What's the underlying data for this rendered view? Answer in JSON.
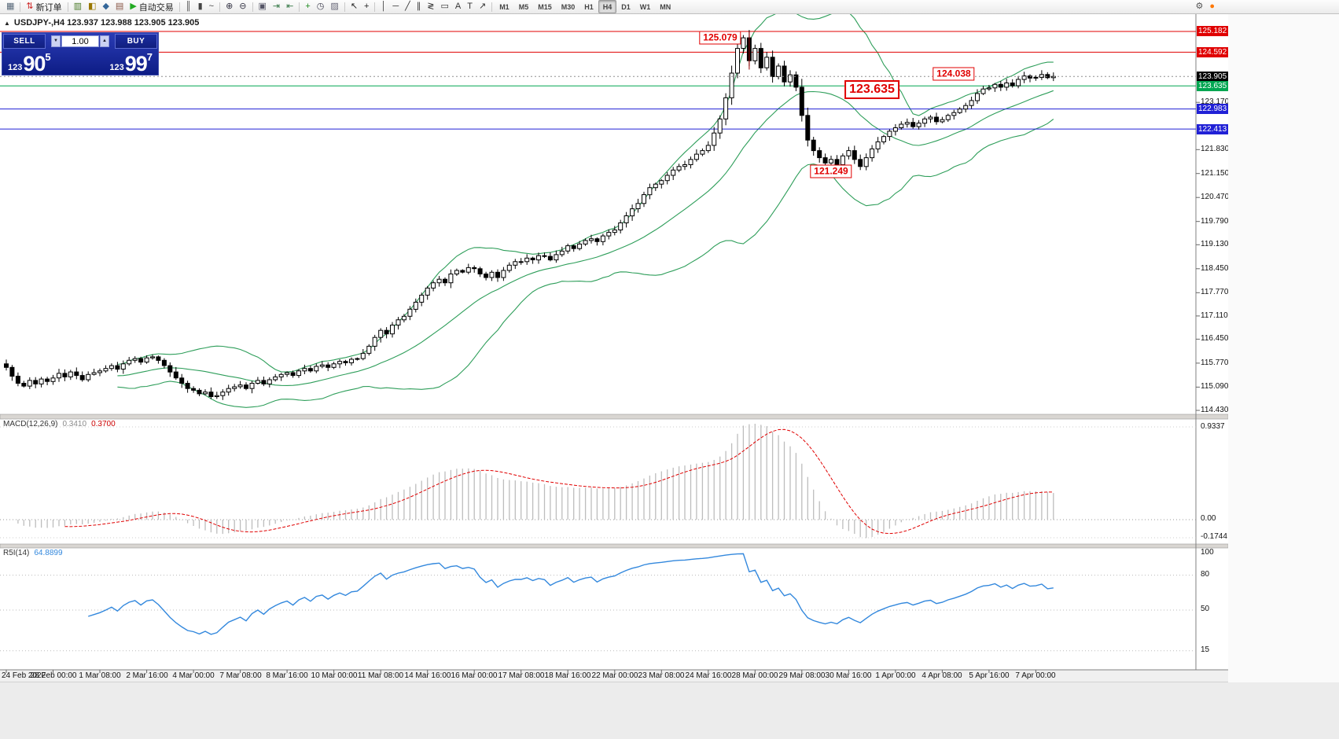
{
  "toolbar": {
    "groups": [
      {
        "items": [
          {
            "name": "new-chart-button",
            "glyph": "▦",
            "color": "#556677"
          }
        ]
      },
      {
        "items": [
          {
            "name": "new-order-button",
            "glyph": "⇅",
            "color": "#cc2222",
            "label": "新订单"
          }
        ]
      },
      {
        "items": [
          {
            "name": "market-watch-button",
            "glyph": "▥",
            "color": "#447722"
          },
          {
            "name": "data-window-button",
            "glyph": "◧",
            "color": "#997700"
          },
          {
            "name": "navigator-button",
            "glyph": "◆",
            "color": "#336699"
          },
          {
            "name": "terminal-button",
            "glyph": "▤",
            "color": "#885544"
          },
          {
            "name": "autotrading-button",
            "glyph": "▶",
            "color": "#22aa22",
            "label": "自动交易"
          }
        ]
      },
      {
        "items": [
          {
            "name": "bar-chart-button",
            "glyph": "║",
            "color": "#444"
          },
          {
            "name": "candlestick-chart-button",
            "glyph": "▮",
            "color": "#444"
          },
          {
            "name": "line-chart-button",
            "glyph": "~",
            "color": "#444"
          }
        ]
      },
      {
        "items": [
          {
            "name": "zoom-in-button",
            "glyph": "⊕",
            "color": "#334"
          },
          {
            "name": "zoom-out-button",
            "glyph": "⊖",
            "color": "#334"
          }
        ]
      },
      {
        "items": [
          {
            "name": "tile-windows-button",
            "glyph": "▣",
            "color": "#556"
          },
          {
            "name": "auto-scroll-button",
            "glyph": "⇥",
            "color": "#374"
          },
          {
            "name": "chart-shift-button",
            "glyph": "⇤",
            "color": "#374"
          }
        ]
      },
      {
        "items": [
          {
            "name": "indicators-button",
            "glyph": "+",
            "color": "#1d8a1d"
          },
          {
            "name": "periods-button",
            "glyph": "◷",
            "color": "#445"
          },
          {
            "name": "templates-button",
            "glyph": "▨",
            "color": "#667"
          }
        ]
      },
      {
        "items": [
          {
            "name": "cursor-button",
            "glyph": "↖",
            "color": "#222"
          },
          {
            "name": "crosshair-button",
            "glyph": "+",
            "color": "#222"
          }
        ]
      },
      {
        "items": [
          {
            "name": "vertical-line-button",
            "glyph": "│",
            "color": "#333"
          },
          {
            "name": "horizontal-line-button",
            "glyph": "─",
            "color": "#333"
          },
          {
            "name": "trendline-button",
            "glyph": "╱",
            "color": "#333"
          },
          {
            "name": "channel-button",
            "glyph": "∥",
            "color": "#333"
          },
          {
            "name": "fibonacci-button",
            "glyph": "≷",
            "color": "#333"
          },
          {
            "name": "shapes-button",
            "glyph": "▭",
            "color": "#333"
          },
          {
            "name": "text-button",
            "glyph": "A",
            "color": "#333"
          },
          {
            "name": "text-label-button",
            "glyph": "T",
            "color": "#333"
          },
          {
            "name": "arrows-button",
            "glyph": "↗",
            "color": "#333"
          }
        ]
      }
    ],
    "timeframes": [
      "M1",
      "M5",
      "M15",
      "M30",
      "H1",
      "H4",
      "D1",
      "W1",
      "MN"
    ],
    "active_timeframe": "H4",
    "right_icons": [
      {
        "name": "settings-icon",
        "glyph": "⚙",
        "color": "#555"
      },
      {
        "name": "community-icon",
        "glyph": "●",
        "color": "#ff7700"
      }
    ]
  },
  "symbol_header": {
    "collapse_glyph": "▲",
    "text": "USDJPY-,H4 123.937 123.988 123.905 123.905"
  },
  "trade_panel": {
    "sell_label": "SELL",
    "buy_label": "BUY",
    "volume": "1.00",
    "spin_down_glyph": "▼",
    "spin_up_glyph": "▲",
    "sell_prefix": "123",
    "sell_big": "90",
    "sell_sup": "5",
    "buy_prefix": "123",
    "buy_big": "99",
    "buy_sup": "7"
  },
  "chart_data": {
    "type": "candlestick",
    "symbol": "USDJPY-",
    "timeframe": "H4",
    "ohlc_display": "123.937 123.988 123.905 123.905",
    "bid": "123.905",
    "ask": "123.997",
    "first_open": 115.75,
    "closes": [
      115.65,
      115.4,
      115.2,
      115.12,
      115.28,
      115.18,
      115.32,
      115.25,
      115.35,
      115.48,
      115.38,
      115.52,
      115.42,
      115.3,
      115.45,
      115.5,
      115.55,
      115.62,
      115.7,
      115.6,
      115.75,
      115.85,
      115.9,
      115.8,
      115.92,
      115.95,
      115.85,
      115.7,
      115.52,
      115.35,
      115.2,
      115.05,
      115.0,
      114.9,
      114.95,
      114.82,
      114.85,
      114.95,
      115.05,
      115.1,
      115.15,
      115.05,
      115.2,
      115.28,
      115.18,
      115.3,
      115.38,
      115.45,
      115.5,
      115.42,
      115.55,
      115.62,
      115.55,
      115.68,
      115.72,
      115.65,
      115.75,
      115.82,
      115.78,
      115.88,
      115.9,
      116.05,
      116.25,
      116.5,
      116.7,
      116.6,
      116.85,
      117.0,
      117.1,
      117.3,
      117.5,
      117.7,
      117.9,
      118.05,
      118.15,
      118.05,
      118.3,
      118.4,
      118.35,
      118.48,
      118.45,
      118.3,
      118.2,
      118.35,
      118.2,
      118.4,
      118.55,
      118.65,
      118.65,
      118.75,
      118.7,
      118.82,
      118.8,
      118.7,
      118.85,
      118.95,
      119.1,
      119.02,
      119.15,
      119.25,
      119.3,
      119.22,
      119.38,
      119.48,
      119.55,
      119.75,
      119.95,
      120.15,
      120.3,
      120.55,
      120.75,
      120.85,
      120.95,
      121.1,
      121.25,
      121.35,
      121.4,
      121.55,
      121.7,
      121.8,
      121.95,
      122.3,
      122.7,
      123.3,
      124.0,
      124.7,
      125.0,
      124.35,
      124.7,
      124.15,
      124.45,
      123.9,
      124.2,
      123.75,
      123.95,
      123.6,
      122.8,
      122.1,
      121.8,
      121.6,
      121.45,
      121.55,
      121.4,
      121.65,
      121.8,
      121.55,
      121.35,
      121.6,
      121.85,
      122.05,
      122.2,
      122.35,
      122.45,
      122.55,
      122.6,
      122.48,
      122.58,
      122.7,
      122.75,
      122.62,
      122.68,
      122.8,
      122.88,
      122.98,
      123.08,
      123.22,
      123.42,
      123.55,
      123.58,
      123.68,
      123.6,
      123.72,
      123.64,
      123.82,
      123.92,
      123.86,
      123.88,
      123.96,
      123.87,
      123.905
    ],
    "wick_overrides": {
      "35": {
        "low": 114.75
      },
      "126": {
        "high": 125.079
      },
      "141": {
        "low": 121.3
      },
      "146": {
        "low": 121.249
      },
      "174": {
        "high": 124.038
      }
    },
    "indicators": {
      "bollinger": {
        "period": 20,
        "deviation": 2
      },
      "macd": {
        "display_name": "MACD(12,26,9)",
        "main_display": "0.3410",
        "signal_display": "0.3700",
        "fast": 12,
        "slow": 26,
        "signal": 9,
        "axis_labels": [
          "0.9337",
          "0.00",
          "-0.1744"
        ]
      },
      "rsi": {
        "display_name": "R5I(14)",
        "display_value": "64.8899",
        "period": 14,
        "axis_labels": [
          "100",
          "80",
          "50",
          "15"
        ],
        "levels": [
          80,
          50,
          15
        ]
      }
    },
    "hlines": [
      {
        "name": "resistance-line-1",
        "price": 125.182,
        "color": "#e00000",
        "label": "125.182",
        "label_bg": "#e00000",
        "style": "solid"
      },
      {
        "name": "resistance-line-2",
        "price": 124.592,
        "color": "#e00000",
        "label": "124.592",
        "label_bg": "#e00000",
        "style": "solid"
      },
      {
        "name": "current-bid-line",
        "price": 123.905,
        "color": "#909090",
        "label": "123.905",
        "label_bg": "#000000",
        "style": "dotted"
      },
      {
        "name": "green-level-line",
        "price": 123.635,
        "color": "#00a651",
        "label": "123.635",
        "label_bg": "#00a651",
        "style": "solid"
      },
      {
        "name": "support-line-1",
        "price": 122.983,
        "color": "#2121d6",
        "label": "122.983",
        "label_bg": "#2121d6",
        "style": "solid"
      },
      {
        "name": "support-line-2",
        "price": 122.413,
        "color": "#2121d6",
        "label": "122.413",
        "label_bg": "#2121d6",
        "style": "solid"
      }
    ],
    "annotations": [
      {
        "text": "125.079",
        "bar": 122,
        "price": 125.0,
        "size": "normal",
        "connector": {
          "bar": 127,
          "from_price": 125.17,
          "to_price": 124.1
        }
      },
      {
        "text": "123.635",
        "bar": 148,
        "price": 123.52,
        "size": "large"
      },
      {
        "text": "124.038",
        "bar": 162,
        "price": 123.97,
        "size": "normal"
      },
      {
        "text": "121.249",
        "bar": 141,
        "price": 121.21,
        "size": "normal"
      }
    ],
    "price_axis_ticks": [
      "123.170",
      "121.830",
      "121.150",
      "120.470",
      "119.790",
      "119.130",
      "118.450",
      "117.770",
      "117.110",
      "116.450",
      "115.770",
      "115.090",
      "114.430"
    ],
    "time_axis_labels": [
      "24 Feb 2022",
      "28 Feb 00:00",
      "1 Mar 08:00",
      "2 Mar 16:00",
      "4 Mar 00:00",
      "7 Mar 08:00",
      "8 Mar 16:00",
      "10 Mar 00:00",
      "11 Mar 08:00",
      "14 Mar 16:00",
      "16 Mar 00:00",
      "17 Mar 08:00",
      "18 Mar 16:00",
      "22 Mar 00:00",
      "23 Mar 08:00",
      "24 Mar 16:00",
      "28 Mar 00:00",
      "29 Mar 08:00",
      "30 Mar 16:00",
      "1 Apr 00:00",
      "4 Apr 08:00",
      "5 Apr 16:00",
      "7 Apr 00:00"
    ],
    "label_every_n_bars": 8,
    "colors": {
      "bull": "#ffffff",
      "bear": "#000000",
      "candle_border": "#000000",
      "bands": "#2e9e5a",
      "macd_hist": "#bdbdbd",
      "macd_signal": "#e00000",
      "rsi": "#3388dd"
    }
  }
}
